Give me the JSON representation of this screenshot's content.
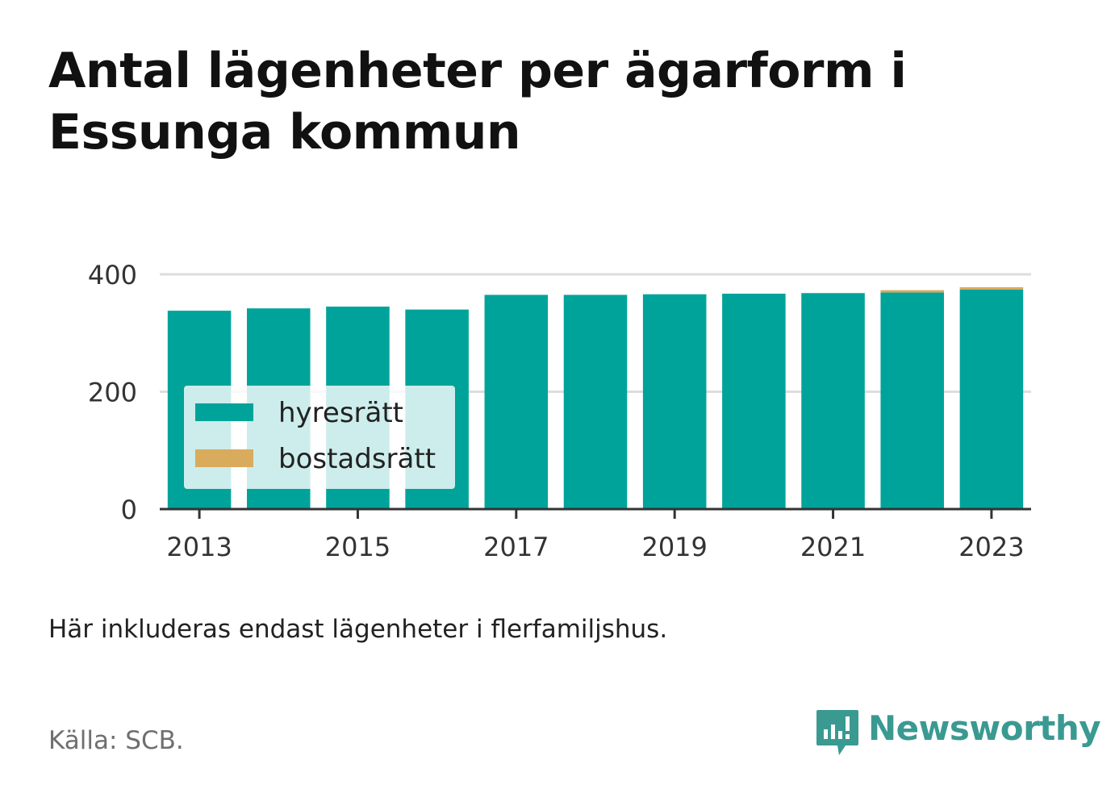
{
  "title": "Antal lägenheter per ägarform i Essunga kommun",
  "note": "Här inkluderas endast lägenheter i flerfamiljshus.",
  "source": "Källa: SCB.",
  "brand": {
    "name": "Newsworthy",
    "logo_icon": "newsworthy-logo-icon",
    "color": "#3a9a92"
  },
  "chart_data": {
    "type": "bar",
    "stacked": true,
    "x": [
      2013,
      2014,
      2015,
      2016,
      2017,
      2018,
      2019,
      2020,
      2021,
      2022,
      2023
    ],
    "x_tick_labels": [
      "2013",
      "2015",
      "2017",
      "2019",
      "2021",
      "2023"
    ],
    "series": [
      {
        "name": "hyresrätt",
        "color": "#00a39a",
        "values": [
          338,
          342,
          345,
          340,
          365,
          365,
          366,
          367,
          368,
          369,
          374
        ]
      },
      {
        "name": "bostadsrätt",
        "color": "#d9ab5c",
        "values": [
          0,
          0,
          0,
          0,
          0,
          0,
          0,
          0,
          0,
          4,
          4
        ]
      }
    ],
    "ylim": [
      0,
      400
    ],
    "y_ticks": [
      "0",
      "200",
      "400"
    ],
    "grid": true,
    "legend_placement": "bottom-left"
  }
}
